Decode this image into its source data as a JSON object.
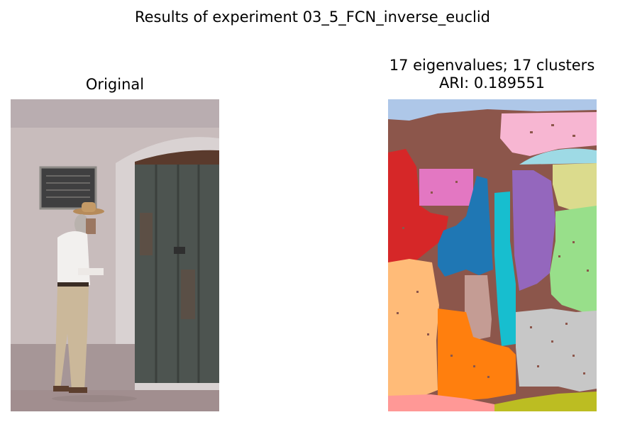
{
  "figure": {
    "suptitle": "Results of experiment 03_5_FCN_inverse_euclid"
  },
  "left_panel": {
    "title": "Original"
  },
  "right_panel": {
    "title_line1": "17 eigenvalues; 17 clusters",
    "title_line2": "ARI: 0.189551",
    "eigenvalues": 17,
    "clusters": 17,
    "ari": 0.189551
  },
  "palette": {
    "brown": "#8c564b",
    "light_blue": "#aec7e8",
    "pink_light": "#f7b6d2",
    "cyan_light": "#9edae5",
    "khaki": "#dbdb8d",
    "red": "#d62728",
    "magenta": "#e377c2",
    "blue": "#1f77b4",
    "cyan": "#17becf",
    "purple": "#9467bd",
    "green_light": "#98df8a",
    "peach": "#ffbb78",
    "tan": "#c49c94",
    "orange": "#ff7f0e",
    "gray_light": "#c7c7c7",
    "salmon": "#ff9896",
    "olive": "#bcbd22"
  }
}
